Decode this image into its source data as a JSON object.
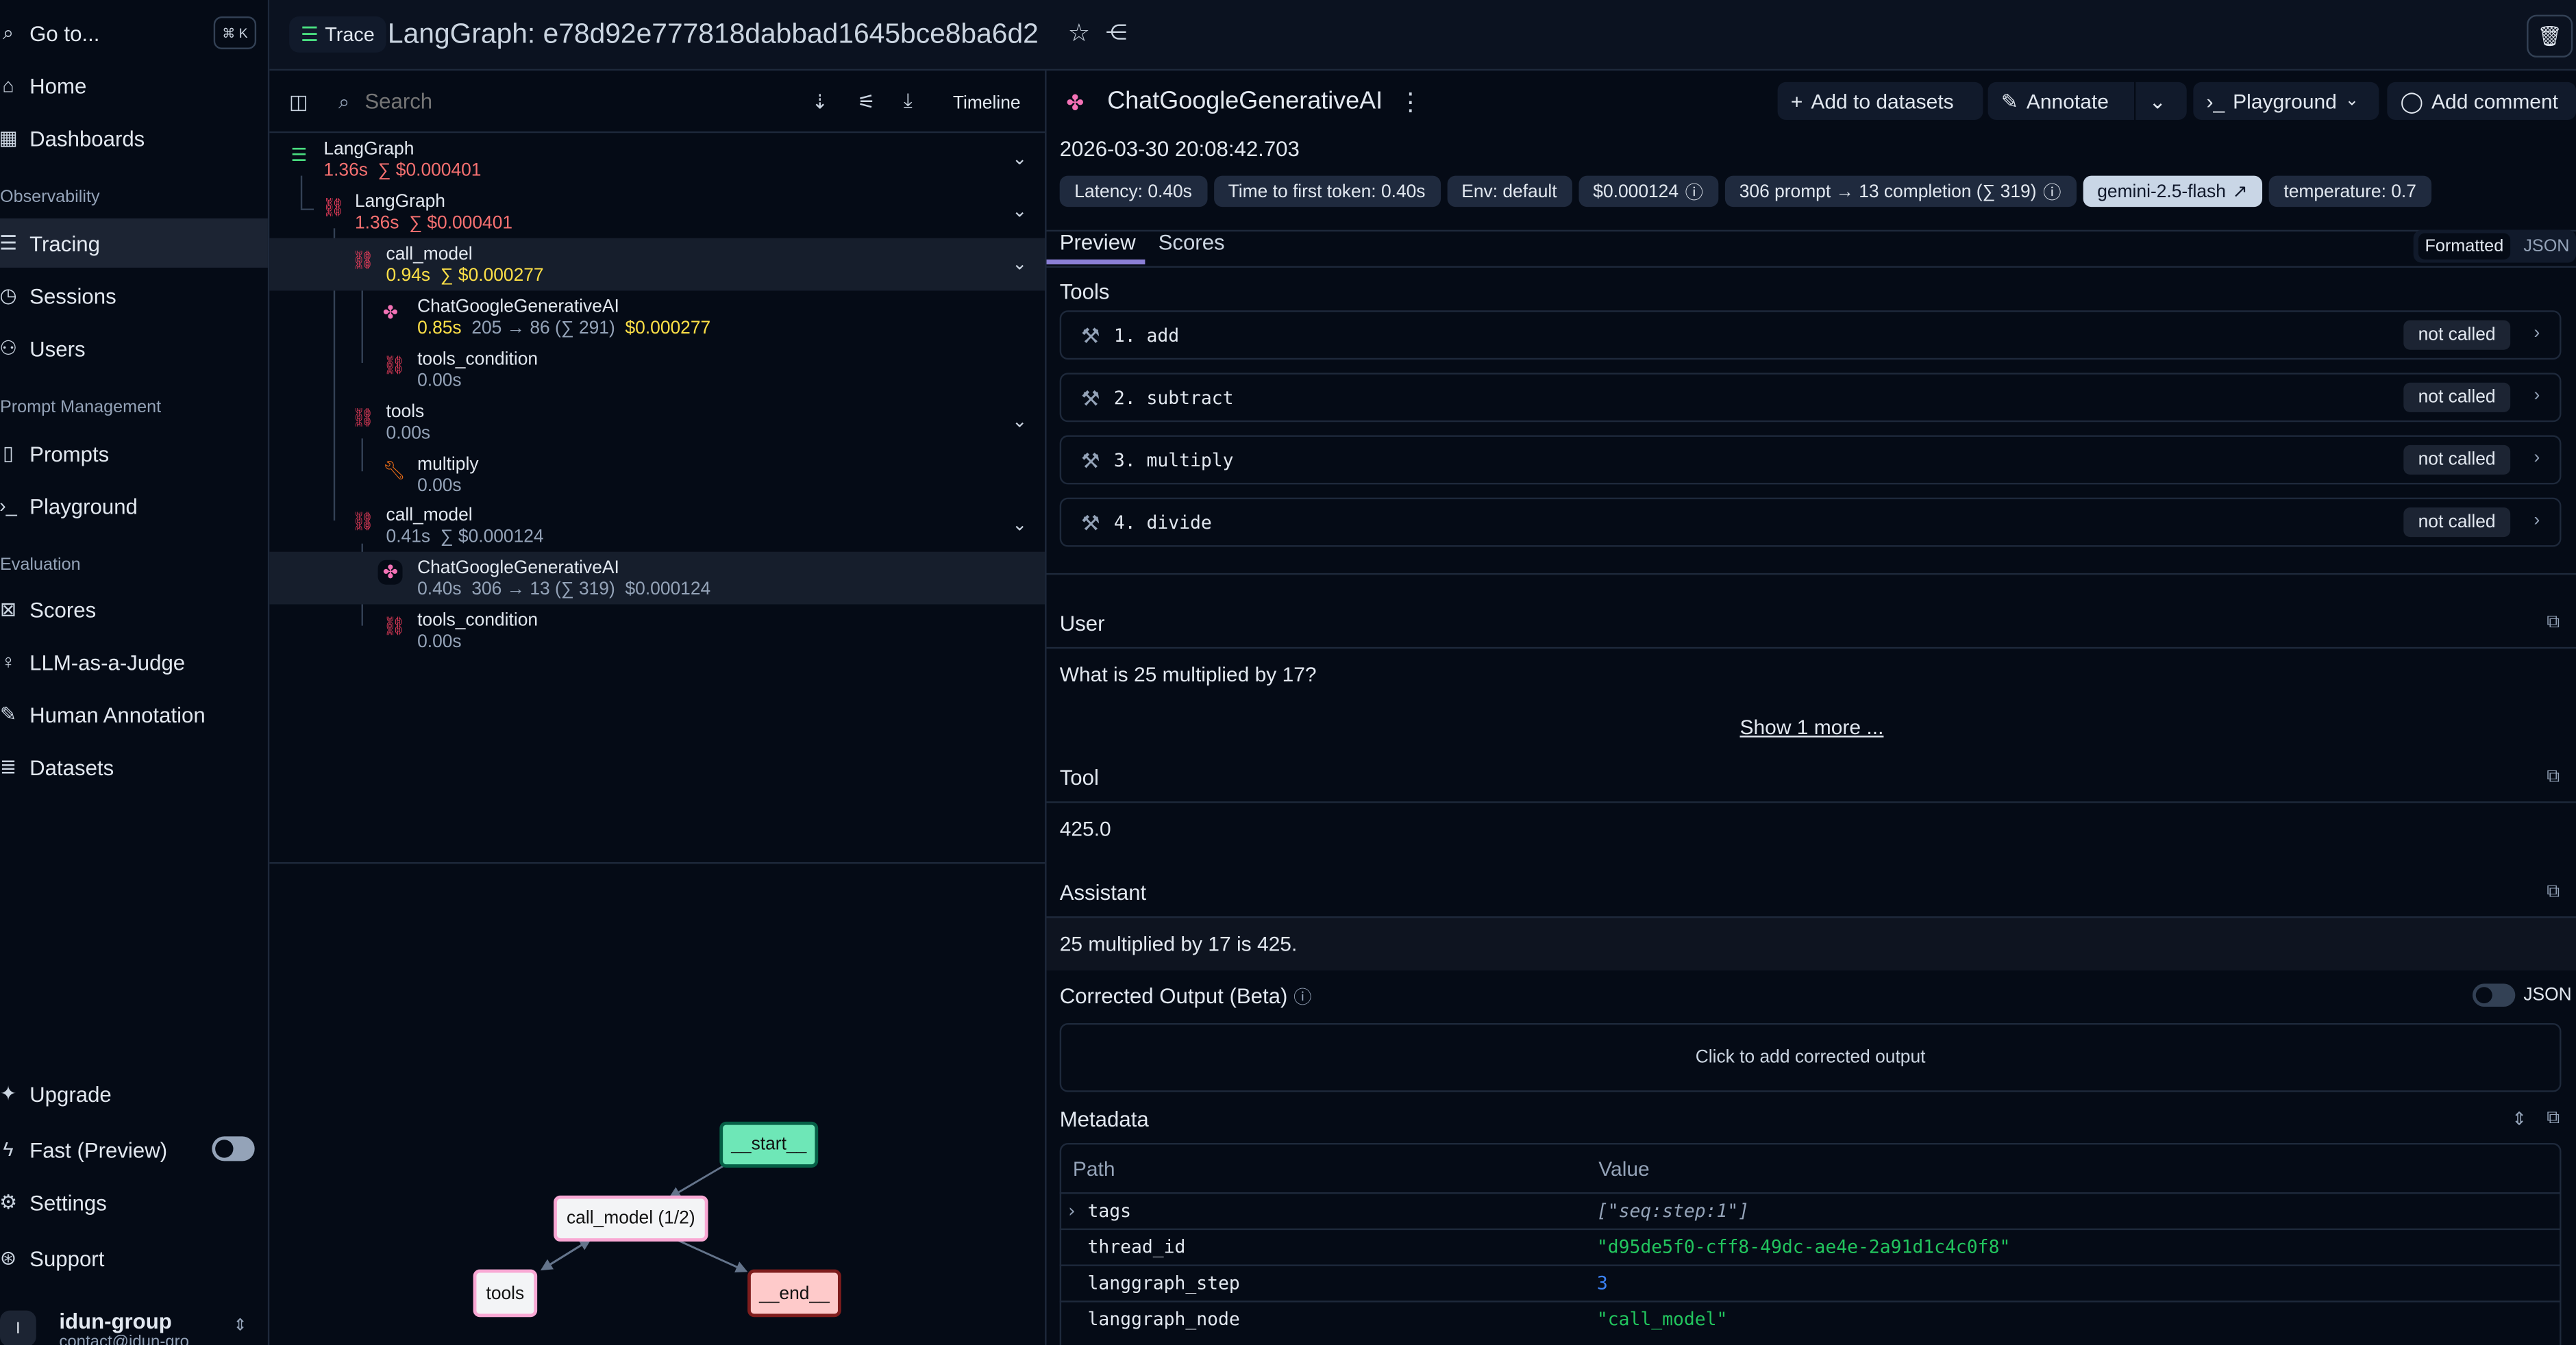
{
  "sidebar": {
    "goto": "Go to...",
    "shortcut": "⌘ K",
    "home": "Home",
    "dashboards": "Dashboards",
    "section_observability": "Observability",
    "tracing": "Tracing",
    "sessions": "Sessions",
    "users": "Users",
    "section_prompt": "Prompt Management",
    "prompts": "Prompts",
    "playground": "Playground",
    "section_evaluation": "Evaluation",
    "scores": "Scores",
    "llm_judge": "LLM-as-a-Judge",
    "human_annotation": "Human Annotation",
    "datasets": "Datasets",
    "upgrade": "Upgrade",
    "fast_preview": "Fast (Preview)",
    "fast_preview_enabled": false,
    "settings": "Settings",
    "support": "Support",
    "org_name": "idun-group",
    "org_email": "contact@idun-gro",
    "avatar_letter": "I"
  },
  "header": {
    "badge": "Trace",
    "title": "LangGraph: e78d92e777818dabbad1645bce8ba6d2"
  },
  "tree": {
    "search_placeholder": "Search",
    "timeline": "Timeline",
    "nodes": [
      {
        "name": "LangGraph",
        "latency": "1.36s",
        "cost": "∑ $0.000401"
      },
      {
        "name": "LangGraph",
        "latency": "1.36s",
        "cost": "∑ $0.000401"
      },
      {
        "name": "call_model",
        "latency": "0.94s",
        "cost": "∑ $0.000277"
      },
      {
        "name": "ChatGoogleGenerativeAI",
        "latency": "0.85s",
        "tokens": "205 → 86 (∑ 291)",
        "cost": "$0.000277"
      },
      {
        "name": "tools_condition",
        "latency": "0.00s"
      },
      {
        "name": "tools",
        "latency": "0.00s"
      },
      {
        "name": "multiply",
        "latency": "0.00s"
      },
      {
        "name": "call_model",
        "latency": "0.41s",
        "cost": "∑ $0.000124"
      },
      {
        "name": "ChatGoogleGenerativeAI",
        "latency": "0.40s",
        "tokens": "306 → 13 (∑ 319)",
        "cost": "$0.000124"
      },
      {
        "name": "tools_condition",
        "latency": "0.00s"
      }
    ]
  },
  "graph": {
    "start": "__start__",
    "call_model": "call_model (1/2)",
    "tools": "tools",
    "end": "__end__"
  },
  "detail": {
    "title": "ChatGoogleGenerativeAI",
    "add_datasets": "Add to datasets",
    "annotate": "Annotate",
    "playground": "Playground",
    "add_comment": "Add comment",
    "timestamp": "2026-03-30 20:08:42.703",
    "badges": [
      "Latency: 0.40s",
      "Time to first token: 0.40s",
      "Env: default",
      "$0.000124",
      "306 prompt → 13 completion (∑ 319)",
      "gemini-2.5-flash",
      "temperature: 0.7"
    ],
    "tabs": [
      "Preview",
      "Scores"
    ],
    "view_toggle": [
      "Formatted",
      "JSON"
    ],
    "tools_heading": "Tools",
    "tools": [
      {
        "label": "1. add",
        "status": "not called"
      },
      {
        "label": "2. subtract",
        "status": "not called"
      },
      {
        "label": "3. multiply",
        "status": "not called"
      },
      {
        "label": "4. divide",
        "status": "not called"
      }
    ],
    "user_heading": "User",
    "user_text": "What is 25 multiplied by 17?",
    "show_more": "Show 1 more ...",
    "tool_heading": "Tool",
    "tool_text": "425.0",
    "assistant_heading": "Assistant",
    "assistant_text": "25 multiplied by 17 is 425.",
    "corrected_heading": "Corrected Output (Beta)",
    "corrected_json": "JSON",
    "corrected_placeholder": "Click to add corrected output",
    "metadata_heading": "Metadata",
    "metadata_cols": [
      "Path",
      "Value"
    ],
    "metadata": [
      {
        "path": "tags",
        "value": "[\"seq:step:1\"]"
      },
      {
        "path": "thread_id",
        "value": "\"d95de5f0-cff8-49dc-ae4e-2a91d1c4c0f8\""
      },
      {
        "path": "langgraph_step",
        "value": "3"
      },
      {
        "path": "langgraph_node",
        "value": "\"call_model\""
      }
    ]
  },
  "colors": {
    "accent": "#8b7fd6",
    "cost_red": "#f87171",
    "cost_yellow": "#fde047",
    "json_green": "#22c55e",
    "json_blue": "#3b82f6",
    "link_pink": "#f43f5e"
  }
}
